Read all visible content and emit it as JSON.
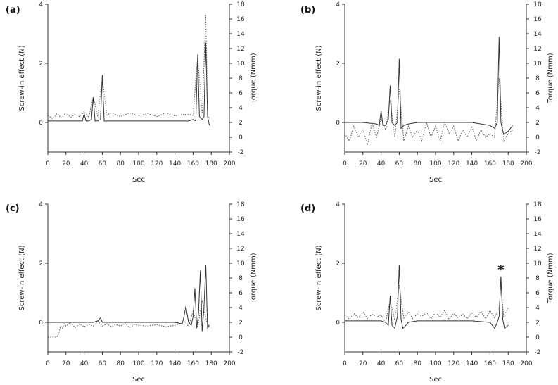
{
  "chart_data": [
    {
      "panel": "(a)",
      "type": "line",
      "xlabel": "Sec",
      "ylabel": "Screw-in effect (N)",
      "y2label": "Torque (Nmm)",
      "xlim": [
        0,
        200
      ],
      "ylim": [
        -1,
        4
      ],
      "y2lim": [
        -2,
        18
      ],
      "x_ticks": [
        0,
        20,
        40,
        60,
        80,
        100,
        120,
        140,
        160,
        180,
        200
      ],
      "y_ticks": [
        0,
        2,
        4
      ],
      "y2_ticks": [
        -2,
        0,
        2,
        4,
        6,
        8,
        10,
        12,
        14,
        16,
        18
      ],
      "series": [
        {
          "style": "solid",
          "axis": "left",
          "x": [
            0,
            20,
            38,
            40,
            42,
            45,
            48,
            50,
            52,
            55,
            58,
            60,
            62,
            65,
            80,
            120,
            155,
            160,
            163,
            165,
            167,
            170,
            172,
            174,
            176,
            178
          ],
          "y": [
            0.05,
            0.05,
            0.05,
            0.3,
            0.05,
            0.05,
            0.1,
            0.85,
            0.05,
            0.05,
            0.1,
            1.6,
            0.05,
            0.05,
            0.05,
            0.05,
            0.05,
            0.1,
            0.05,
            2.3,
            0.2,
            0.1,
            0.2,
            2.7,
            0.2,
            -0.1
          ]
        },
        {
          "style": "dotted",
          "axis": "right",
          "x": [
            0,
            5,
            10,
            15,
            20,
            25,
            30,
            35,
            40,
            45,
            50,
            55,
            60,
            65,
            70,
            80,
            90,
            100,
            110,
            120,
            130,
            140,
            150,
            160,
            165,
            170,
            174,
            176,
            178
          ],
          "y": [
            3,
            2.5,
            3.2,
            2.6,
            3.3,
            2.7,
            3.1,
            2.8,
            3.5,
            2.7,
            5.5,
            2.8,
            8,
            3,
            3.3,
            2.8,
            3.3,
            2.9,
            3.2,
            2.8,
            3.3,
            2.9,
            3.1,
            3,
            11,
            3.2,
            16.5,
            3,
            2.5
          ]
        }
      ]
    },
    {
      "panel": "(b)",
      "type": "line",
      "xlabel": "Sec",
      "ylabel": "Screw-in effect (N)",
      "y2label": "Torque (Nmm)",
      "xlim": [
        0,
        200
      ],
      "ylim": [
        -1,
        4
      ],
      "y2lim": [
        -2,
        18
      ],
      "x_ticks": [
        0,
        20,
        40,
        60,
        80,
        100,
        120,
        140,
        160,
        180,
        200
      ],
      "y_ticks": [
        0,
        2,
        4
      ],
      "y2_ticks": [
        -2,
        0,
        2,
        4,
        6,
        8,
        10,
        12,
        14,
        16,
        18
      ],
      "series": [
        {
          "style": "solid",
          "axis": "left",
          "x": [
            0,
            20,
            35,
            38,
            40,
            42,
            45,
            48,
            50,
            52,
            55,
            58,
            60,
            62,
            65,
            70,
            80,
            100,
            120,
            140,
            160,
            165,
            168,
            170,
            172,
            175,
            180,
            185
          ],
          "y": [
            0,
            0,
            -0.05,
            -0.1,
            0.4,
            -0.1,
            -0.1,
            0.1,
            1.25,
            0.0,
            -0.1,
            0.0,
            2.15,
            -0.2,
            -0.1,
            -0.05,
            0,
            0,
            0,
            0,
            -0.1,
            -0.2,
            0,
            2.9,
            0,
            -0.4,
            -0.3,
            -0.1
          ]
        },
        {
          "style": "dotted",
          "axis": "right",
          "x": [
            0,
            5,
            10,
            15,
            20,
            25,
            30,
            35,
            40,
            45,
            50,
            55,
            60,
            65,
            70,
            75,
            80,
            85,
            90,
            95,
            100,
            105,
            110,
            115,
            120,
            125,
            130,
            135,
            140,
            145,
            150,
            155,
            160,
            165,
            170,
            175,
            180,
            185
          ],
          "y": [
            0.5,
            -0.5,
            1.5,
            0,
            1,
            -1,
            2,
            0,
            2.5,
            1,
            5,
            0,
            6.5,
            -0.5,
            1.5,
            0,
            1,
            -0.5,
            2,
            0,
            1.5,
            -0.5,
            2,
            0.5,
            1.5,
            -0.5,
            1,
            0,
            1.5,
            -0.5,
            1,
            0,
            0.5,
            0,
            8,
            -0.5,
            0.5,
            1
          ]
        }
      ]
    },
    {
      "panel": "(c)",
      "type": "line",
      "xlabel": "Sec",
      "ylabel": "Screw-in effect (N)",
      "y2label": "Torque (Nmm)",
      "xlim": [
        0,
        200
      ],
      "ylim": [
        -1,
        4
      ],
      "y2lim": [
        -2,
        18
      ],
      "x_ticks": [
        0,
        20,
        40,
        60,
        80,
        100,
        120,
        140,
        160,
        180,
        200
      ],
      "y_ticks": [
        0,
        2,
        4
      ],
      "y2_ticks": [
        -2,
        0,
        2,
        4,
        6,
        8,
        10,
        12,
        14,
        16,
        18
      ],
      "series": [
        {
          "style": "solid",
          "axis": "left",
          "x": [
            0,
            20,
            50,
            55,
            58,
            60,
            80,
            100,
            120,
            140,
            148,
            150,
            152,
            155,
            158,
            160,
            162,
            164,
            166,
            168,
            170,
            172,
            174,
            176,
            178
          ],
          "y": [
            0,
            0,
            0,
            0.05,
            0.15,
            0,
            0,
            0,
            0,
            0,
            -0.05,
            0.2,
            0.55,
            0,
            -0.1,
            0.2,
            1.15,
            -0.2,
            0.3,
            1.75,
            -0.3,
            0.5,
            1.95,
            -0.2,
            -0.1
          ]
        },
        {
          "style": "dotted",
          "axis": "right",
          "x": [
            0,
            5,
            10,
            12,
            14,
            16,
            18,
            20,
            25,
            30,
            35,
            40,
            45,
            50,
            55,
            60,
            65,
            70,
            75,
            80,
            85,
            90,
            95,
            100,
            110,
            120,
            130,
            140,
            150,
            155,
            160,
            165,
            170,
            175,
            178
          ],
          "y": [
            0,
            0,
            0,
            0.5,
            1.5,
            1.2,
            1.8,
            1.5,
            2,
            1.3,
            1.8,
            1.4,
            1.7,
            1.5,
            2.2,
            1.5,
            1.8,
            1.4,
            1.7,
            1.5,
            1.9,
            1.3,
            1.7,
            1.6,
            1.5,
            1.7,
            1.4,
            1.6,
            2,
            1.5,
            3.5,
            1.4,
            5,
            2,
            1.5
          ]
        }
      ]
    },
    {
      "panel": "(d)",
      "type": "line",
      "xlabel": "Sec",
      "ylabel": "Screw-in effect (N)",
      "y2label": "Torque (Nmm)",
      "xlim": [
        0,
        200
      ],
      "ylim": [
        -1,
        4
      ],
      "y2lim": [
        -2,
        18
      ],
      "x_ticks": [
        0,
        20,
        40,
        60,
        80,
        100,
        120,
        140,
        160,
        180,
        200
      ],
      "y_ticks": [
        0,
        2,
        4
      ],
      "y2_ticks": [
        -2,
        0,
        2,
        4,
        6,
        8,
        10,
        12,
        14,
        16,
        18
      ],
      "annotation": "*",
      "annotation_x": 172,
      "series": [
        {
          "style": "solid",
          "axis": "left",
          "x": [
            0,
            20,
            40,
            45,
            48,
            50,
            52,
            55,
            58,
            60,
            62,
            64,
            66,
            70,
            80,
            100,
            120,
            140,
            160,
            165,
            168,
            170,
            172,
            174,
            176,
            178,
            180
          ],
          "y": [
            0.05,
            0.05,
            0.05,
            0.0,
            -0.1,
            0.9,
            -0.1,
            -0.2,
            0.2,
            1.95,
            0.1,
            -0.2,
            -0.15,
            0,
            0.05,
            0.05,
            0.05,
            0.05,
            0,
            -0.2,
            0,
            0.2,
            1.55,
            0.1,
            -0.2,
            -0.15,
            -0.1
          ]
        },
        {
          "style": "dotted",
          "axis": "right",
          "x": [
            0,
            5,
            10,
            15,
            20,
            25,
            30,
            35,
            40,
            45,
            50,
            55,
            60,
            65,
            70,
            75,
            80,
            85,
            90,
            95,
            100,
            105,
            110,
            115,
            120,
            125,
            130,
            135,
            140,
            145,
            150,
            155,
            160,
            165,
            170,
            172,
            175,
            180
          ],
          "y": [
            3,
            2.4,
            3.2,
            2.6,
            3.4,
            2.5,
            3.1,
            2.7,
            3,
            2,
            5,
            2.3,
            7,
            2.5,
            3.4,
            2.5,
            3.2,
            2.8,
            3.4,
            2.5,
            3.3,
            2.7,
            3.6,
            2.4,
            3.2,
            2.6,
            3.1,
            2.5,
            3.3,
            2.7,
            3.5,
            2.5,
            3.6,
            2.6,
            4,
            7,
            2.8,
            4
          ]
        }
      ]
    }
  ]
}
